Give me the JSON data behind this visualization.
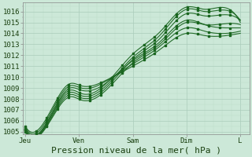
{
  "background_color": "#cce8d8",
  "plot_bg_color": "#cce8d8",
  "grid_major_color": "#aaccbb",
  "grid_minor_color": "#bbddc8",
  "line_color": "#1a6620",
  "xlabel": "Pression niveau de la mer( hPa )",
  "xlabel_fontsize": 8,
  "tick_fontsize": 6.5,
  "tick_color": "#1a4010",
  "ylim": [
    1004.8,
    1016.8
  ],
  "yticks": [
    1005,
    1006,
    1007,
    1008,
    1009,
    1010,
    1011,
    1012,
    1013,
    1014,
    1015,
    1016
  ],
  "day_labels": [
    "Jeu",
    "Ven",
    "Sam",
    "Dim",
    "L"
  ],
  "day_positions": [
    0,
    24,
    48,
    72,
    96
  ],
  "xlim": [
    -1,
    100
  ]
}
